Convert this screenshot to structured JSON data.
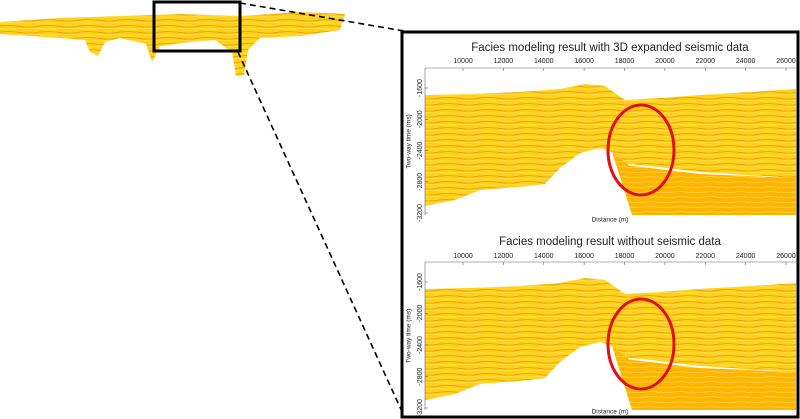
{
  "panels": [
    {
      "title": "Facies modeling result with 3D expanded seismic data",
      "xticks": [
        10000,
        12000,
        14000,
        16000,
        18000,
        20000,
        22000,
        24000,
        26000
      ],
      "yticks": [
        -1600,
        -2000,
        -2400,
        -2800,
        -3200
      ],
      "xlabel": "Distance (m)",
      "ylabel": "Two-way time (ms)"
    },
    {
      "title": "Facies modeling result without seismic data",
      "xticks": [
        10000,
        12000,
        14000,
        16000,
        18000,
        20000,
        22000,
        24000,
        26000
      ],
      "yticks": [
        -1600,
        -2000,
        -2400,
        -2800,
        -3200
      ],
      "xlabel": "Distance (m)",
      "ylabel": "Two-way time (ms)"
    }
  ]
}
